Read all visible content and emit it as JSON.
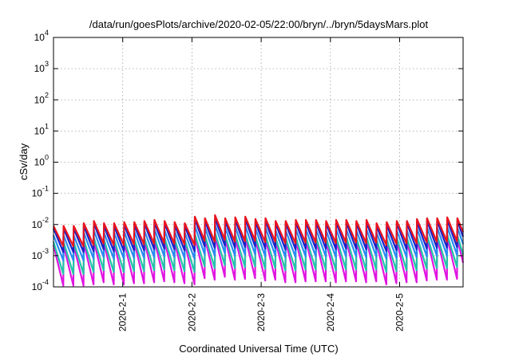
{
  "chart_data": {
    "type": "line",
    "title": "/data/run/goesPlots/archive/2020-02-05/22:00/bryn/../bryn/5daysMars.plot",
    "xlabel": "Coordinated Universal Time (UTC)",
    "ylabel": "cSv/day",
    "yscale": "log",
    "ylim": [
      0.0001,
      10000
    ],
    "y_ticks": [
      {
        "base": "10",
        "exp": "-4",
        "value": 0.0001
      },
      {
        "base": "10",
        "exp": "-3",
        "value": 0.001
      },
      {
        "base": "10",
        "exp": "-2",
        "value": 0.01
      },
      {
        "base": "10",
        "exp": "-1",
        "value": 0.1
      },
      {
        "base": "10",
        "exp": "0",
        "value": 1
      },
      {
        "base": "10",
        "exp": "1",
        "value": 10
      },
      {
        "base": "10",
        "exp": "2",
        "value": 100
      },
      {
        "base": "10",
        "exp": "3",
        "value": 1000
      },
      {
        "base": "10",
        "exp": "4",
        "value": 10000
      }
    ],
    "x_range": [
      "2020-01-31T00:00",
      "2020-02-05T22:00"
    ],
    "x_ticks": [
      {
        "label": "2020-2-1",
        "value": "2020-02-01T00:00"
      },
      {
        "label": "2020-2-2",
        "value": "2020-02-02T00:00"
      },
      {
        "label": "2020-2-3",
        "value": "2020-02-03T00:00"
      },
      {
        "label": "2020-2-4",
        "value": "2020-02-04T00:00"
      },
      {
        "label": "2020-2-5",
        "value": "2020-02-05T00:00"
      }
    ],
    "grid": true,
    "legend": "none",
    "cycle_hours": 3.5,
    "series": [
      {
        "color": "#e8141e",
        "peaks": [
          0.009,
          0.009,
          0.009,
          0.011,
          0.013,
          0.011,
          0.011,
          0.012,
          0.012,
          0.013,
          0.014,
          0.013,
          0.012,
          0.011,
          0.018,
          0.016,
          0.02,
          0.016,
          0.017,
          0.018,
          0.015,
          0.016,
          0.013,
          0.013,
          0.014,
          0.014,
          0.014,
          0.013,
          0.014,
          0.014,
          0.013,
          0.014,
          0.011,
          0.012,
          0.013,
          0.013,
          0.015,
          0.016,
          0.016,
          0.017,
          0.016,
          0.014
        ],
        "troughs": [
          0.002,
          0.002,
          0.002,
          0.0022,
          0.0024,
          0.0022,
          0.0022,
          0.0023,
          0.0023,
          0.0024,
          0.0025,
          0.0024,
          0.0023,
          0.0022,
          0.003,
          0.0028,
          0.0032,
          0.0028,
          0.0029,
          0.003,
          0.0027,
          0.0028,
          0.0025,
          0.0025,
          0.0026,
          0.0026,
          0.0026,
          0.0025,
          0.0026,
          0.0026,
          0.0025,
          0.0026,
          0.0022,
          0.0024,
          0.0025,
          0.0025,
          0.0027,
          0.0028,
          0.0028,
          0.0029,
          0.0028,
          0.0026
        ]
      },
      {
        "color": "#1c22c8",
        "peaks": [
          0.0075,
          0.0075,
          0.0075,
          0.009,
          0.011,
          0.009,
          0.009,
          0.0098,
          0.0098,
          0.011,
          0.0115,
          0.011,
          0.0098,
          0.009,
          0.015,
          0.013,
          0.016,
          0.013,
          0.014,
          0.015,
          0.012,
          0.013,
          0.011,
          0.011,
          0.0115,
          0.0115,
          0.0115,
          0.011,
          0.0115,
          0.0115,
          0.011,
          0.0115,
          0.009,
          0.0098,
          0.011,
          0.011,
          0.012,
          0.013,
          0.013,
          0.014,
          0.013,
          0.0115
        ],
        "troughs": [
          0.0013,
          0.0013,
          0.0013,
          0.0014,
          0.0016,
          0.0014,
          0.0014,
          0.0015,
          0.0015,
          0.0016,
          0.0017,
          0.0016,
          0.0015,
          0.0014,
          0.002,
          0.0018,
          0.0021,
          0.0018,
          0.0019,
          0.002,
          0.0017,
          0.0018,
          0.0016,
          0.0016,
          0.0017,
          0.0017,
          0.0017,
          0.0016,
          0.0017,
          0.0017,
          0.0016,
          0.0017,
          0.0014,
          0.0015,
          0.0016,
          0.0016,
          0.0017,
          0.0018,
          0.0018,
          0.0019,
          0.0018,
          0.0017
        ]
      },
      {
        "color": "#2a8cf0",
        "peaks": [
          0.0045,
          0.0045,
          0.0045,
          0.0055,
          0.0065,
          0.0055,
          0.0055,
          0.006,
          0.006,
          0.0065,
          0.007,
          0.0065,
          0.006,
          0.0055,
          0.009,
          0.008,
          0.01,
          0.008,
          0.0085,
          0.009,
          0.0075,
          0.008,
          0.0065,
          0.0065,
          0.007,
          0.007,
          0.007,
          0.0065,
          0.007,
          0.007,
          0.0065,
          0.007,
          0.0055,
          0.006,
          0.0065,
          0.0065,
          0.0075,
          0.008,
          0.008,
          0.0085,
          0.008,
          0.007
        ],
        "troughs": [
          0.0007,
          0.0007,
          0.0007,
          0.0008,
          0.0009,
          0.0008,
          0.0008,
          0.00085,
          0.00085,
          0.0009,
          0.00095,
          0.0009,
          0.00085,
          0.0008,
          0.0011,
          0.001,
          0.0012,
          0.001,
          0.00105,
          0.0011,
          0.00095,
          0.001,
          0.0009,
          0.0009,
          0.00095,
          0.00095,
          0.00095,
          0.0009,
          0.00095,
          0.00095,
          0.0009,
          0.00095,
          0.0008,
          0.00085,
          0.0009,
          0.0009,
          0.00095,
          0.001,
          0.001,
          0.00105,
          0.001,
          0.00095
        ]
      },
      {
        "color": "#22c4a8",
        "peaks": [
          0.0028,
          0.0028,
          0.0028,
          0.0033,
          0.0038,
          0.0033,
          0.0033,
          0.0035,
          0.0035,
          0.0038,
          0.004,
          0.0038,
          0.0035,
          0.0033,
          0.005,
          0.0045,
          0.0055,
          0.0045,
          0.0048,
          0.005,
          0.0042,
          0.0045,
          0.0038,
          0.0038,
          0.004,
          0.004,
          0.004,
          0.0038,
          0.004,
          0.004,
          0.0038,
          0.004,
          0.0033,
          0.0035,
          0.0038,
          0.0038,
          0.0042,
          0.0045,
          0.0045,
          0.0048,
          0.0045,
          0.004
        ],
        "troughs": [
          0.00026,
          0.00026,
          0.00026,
          0.0003,
          0.00034,
          0.0003,
          0.0003,
          0.00032,
          0.00032,
          0.00034,
          0.00036,
          0.00034,
          0.00032,
          0.0003,
          0.00045,
          0.0004,
          0.0005,
          0.0004,
          0.00043,
          0.00045,
          0.00038,
          0.0004,
          0.00034,
          0.00034,
          0.00036,
          0.00036,
          0.00036,
          0.00034,
          0.00036,
          0.00036,
          0.00034,
          0.00036,
          0.0003,
          0.00032,
          0.00034,
          0.00034,
          0.00038,
          0.0004,
          0.0004,
          0.00043,
          0.0004,
          0.00036
        ]
      },
      {
        "color": "#e014e0",
        "peaks": [
          0.0022,
          0.0022,
          0.0022,
          0.0026,
          0.003,
          0.0026,
          0.0026,
          0.0028,
          0.0028,
          0.003,
          0.0032,
          0.003,
          0.0028,
          0.0026,
          0.004,
          0.0036,
          0.0044,
          0.0036,
          0.0038,
          0.004,
          0.0034,
          0.0036,
          0.003,
          0.003,
          0.0032,
          0.0032,
          0.0032,
          0.003,
          0.0032,
          0.0032,
          0.003,
          0.0032,
          0.0026,
          0.0028,
          0.003,
          0.003,
          0.0034,
          0.0036,
          0.0036,
          0.0038,
          0.0036,
          0.0032
        ],
        "troughs": [
          0.00011,
          0.00011,
          0.00011,
          0.00012,
          0.00014,
          0.00012,
          0.00012,
          0.00013,
          0.00013,
          0.00014,
          0.00015,
          0.00014,
          0.00013,
          0.00012,
          0.00019,
          0.00017,
          0.00021,
          0.00017,
          0.00018,
          0.00019,
          0.00016,
          0.00017,
          0.00014,
          0.00014,
          0.00015,
          0.00015,
          0.00015,
          0.00014,
          0.00015,
          0.00015,
          0.00014,
          0.00015,
          0.00012,
          0.00013,
          0.00014,
          0.00014,
          0.00016,
          0.00017,
          0.00017,
          0.00018,
          0.00017,
          0.00015
        ]
      }
    ]
  }
}
